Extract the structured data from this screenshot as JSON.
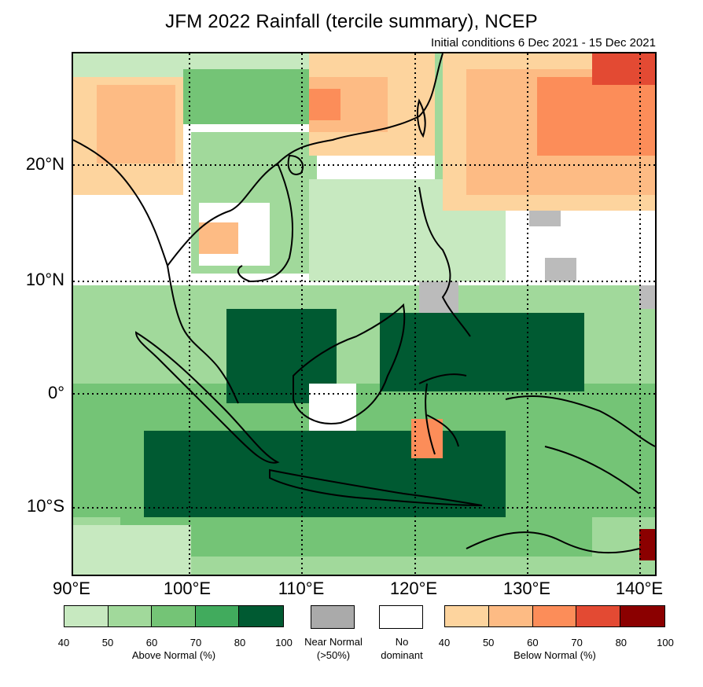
{
  "header": {
    "title": "JFM 2022 Rainfall (tercile summary), NCEP",
    "subtitle": "Initial conditions 6 Dec 2021 - 15 Dec 2021"
  },
  "map": {
    "lat_labels": [
      "20°N",
      "10°N",
      "0°",
      "10°S"
    ],
    "lon_labels": [
      "90°E",
      "100°E",
      "110°E",
      "120°E",
      "130°E",
      "140°E"
    ]
  },
  "legend": {
    "above": {
      "label": "Above Normal (%)",
      "ticks": [
        "40",
        "50",
        "60",
        "70",
        "80",
        "100"
      ],
      "colors": [
        "#c7e9c0",
        "#a1d99b",
        "#74c476",
        "#41ab5d",
        "#005a32"
      ]
    },
    "near": {
      "label_line1": "Near Normal",
      "label_line2": "(>50%)",
      "color": "#aaaaaa"
    },
    "none": {
      "label_line1": "No",
      "label_line2": "dominant",
      "color": "#ffffff"
    },
    "below": {
      "label": "Below Normal (%)",
      "ticks": [
        "40",
        "50",
        "60",
        "70",
        "80",
        "100"
      ],
      "colors": [
        "#fdd49e",
        "#fdbb84",
        "#fc8d59",
        "#e34a33",
        "#8b0000"
      ]
    }
  }
}
